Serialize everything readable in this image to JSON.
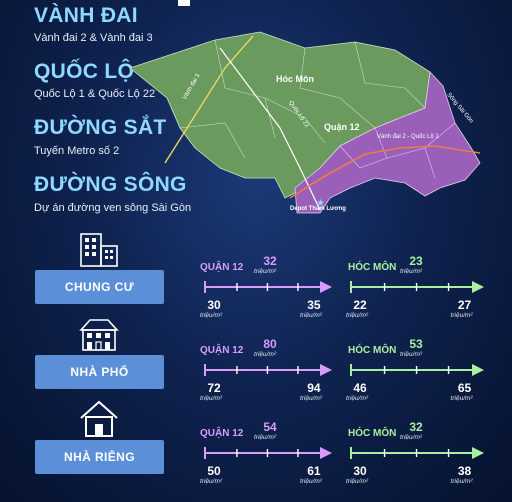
{
  "infrastructure": [
    {
      "title": "VÀNH ĐAI",
      "subtitle": "Vành đai 2 & Vành đai 3"
    },
    {
      "title": "QUỐC LỘ",
      "subtitle": "Quốc Lộ 1 & Quốc Lộ 22"
    },
    {
      "title": "ĐƯỜNG SẮT",
      "subtitle": "Tuyến Metro số 2"
    },
    {
      "title": "ĐƯỜNG SÔNG",
      "subtitle": "Dự án đường ven sông Sài Gòn"
    }
  ],
  "map": {
    "district_hoc_mon": "Hóc Môn",
    "district_quan_12": "Quận 12",
    "road_vanh_dai_3": "Vành đai 3",
    "road_quoc_lo_22": "Quốc Lộ 22",
    "road_vanh_dai_2": "Vành đai 2 - Quốc Lộ 1",
    "river": "Sông Sài Gòn",
    "depot": "Depot Tham Lương"
  },
  "unit_text": "triệu/m²",
  "categories": [
    {
      "label": "CHUNG CƯ",
      "icon": "apartment-building-icon",
      "q12": {
        "region": "QUẬN 12",
        "avg": "32",
        "min": "30",
        "max": "35"
      },
      "hm": {
        "region": "HÓC MÔN",
        "avg": "23",
        "min": "22",
        "max": "27"
      }
    },
    {
      "label": "NHÀ PHỐ",
      "icon": "townhouse-icon",
      "q12": {
        "region": "QUẬN 12",
        "avg": "80",
        "min": "72",
        "max": "94"
      },
      "hm": {
        "region": "HÓC MÔN",
        "avg": "53",
        "min": "46",
        "max": "65"
      }
    },
    {
      "label": "NHÀ RIÊNG",
      "icon": "house-icon",
      "q12": {
        "region": "QUẬN 12",
        "avg": "54",
        "min": "50",
        "max": "61"
      },
      "hm": {
        "region": "HÓC MÔN",
        "avg": "32",
        "min": "30",
        "max": "38"
      }
    }
  ],
  "colors": {
    "q12": "#d89cff",
    "hm": "#a8f0a0",
    "button": "#5b8fd8",
    "heading": "#8fd8ff"
  }
}
